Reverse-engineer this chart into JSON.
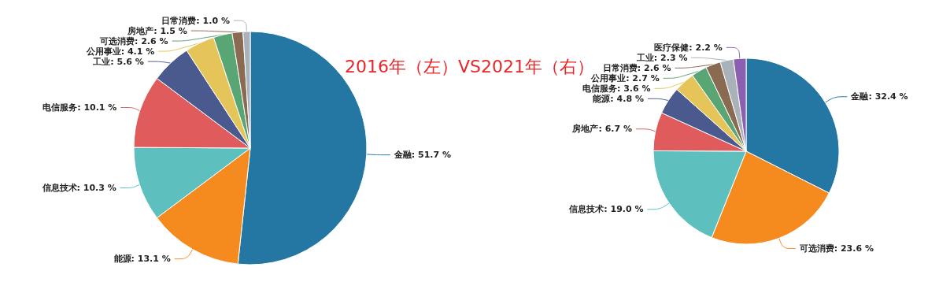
{
  "chart_data": [
    {
      "type": "pie",
      "title": "2016年（左）VS2021年（右）",
      "categories": [
        "金融",
        "能源",
        "信息技术",
        "电信服务",
        "工业",
        "公用事业",
        "可选消费",
        "房地产",
        "日常消费"
      ],
      "values": [
        51.7,
        13.1,
        10.3,
        10.1,
        5.6,
        4.1,
        2.6,
        1.5,
        1.0
      ],
      "value_labels": [
        "51.7 %",
        "13.1 %",
        "10.3 %",
        "10.1 %",
        "5.6 %",
        "4.1 %",
        "2.6 %",
        "1.5 %",
        "1.0 %"
      ],
      "colors": [
        "#2477a3",
        "#f58a1f",
        "#5ebfbf",
        "#e05c5c",
        "#4a5a8e",
        "#e5c55a",
        "#5aa574",
        "#8b6a52",
        "#a9b1b9"
      ],
      "legend": false
    },
    {
      "type": "pie",
      "categories": [
        "金融",
        "可选消费",
        "信息技术",
        "房地产",
        "能源",
        "电信服务",
        "公用事业",
        "日常消费",
        "工业",
        "医疗保健"
      ],
      "values": [
        32.4,
        23.6,
        19.0,
        6.7,
        4.8,
        3.6,
        2.7,
        2.6,
        2.3,
        2.2
      ],
      "value_labels": [
        "32.4 %",
        "23.6 %",
        "19.0 %",
        "6.7 %",
        "4.8 %",
        "3.6 %",
        "2.7 %",
        "2.6 %",
        "2.3 %",
        "2.2 %"
      ],
      "colors": [
        "#2477a3",
        "#f58a1f",
        "#5ebfbf",
        "#e05c5c",
        "#4a5a8e",
        "#e5c55a",
        "#5aa574",
        "#8b6a52",
        "#a9b1b9",
        "#8c60b0"
      ],
      "legend": false
    }
  ]
}
